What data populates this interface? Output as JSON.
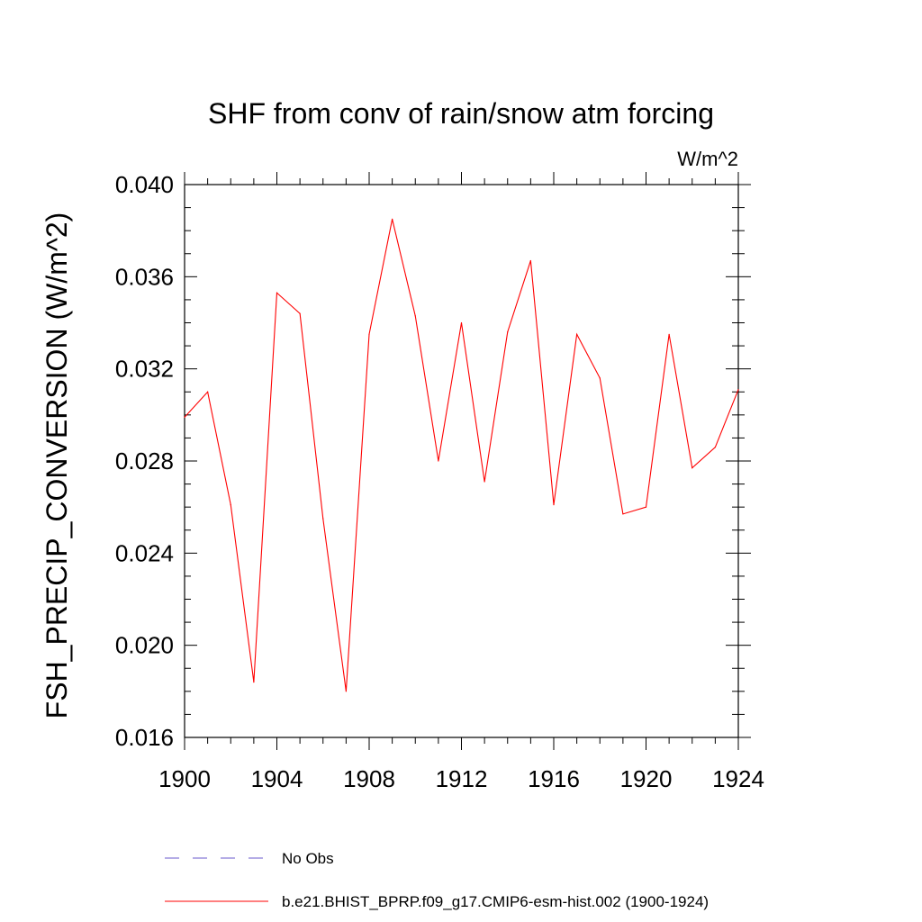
{
  "chart_data": {
    "type": "line",
    "title": "SHF from conv of rain/snow atm forcing",
    "units": "W/m^2",
    "xlabel": "",
    "ylabel": "FSH_PRECIP_CONVERSION  (W/m^2)",
    "xlim": [
      1900,
      1924
    ],
    "ylim": [
      0.016,
      0.04
    ],
    "x_ticks": [
      "1900",
      "1904",
      "1908",
      "1912",
      "1916",
      "1920",
      "1924"
    ],
    "y_ticks": [
      "0.016",
      "0.020",
      "0.024",
      "0.028",
      "0.032",
      "0.036",
      "0.040"
    ],
    "x": [
      1900,
      1901,
      1902,
      1903,
      1904,
      1905,
      1906,
      1907,
      1908,
      1909,
      1910,
      1911,
      1912,
      1913,
      1914,
      1915,
      1916,
      1917,
      1918,
      1919,
      1920,
      1921,
      1922,
      1923,
      1924
    ],
    "series": [
      {
        "name": "b.e21.BHIST_BPRP.f09_g17.CMIP6-esm-hist.002 (1900-1924)",
        "color": "#ff0000",
        "style": "solid",
        "values": [
          0.0299,
          0.031,
          0.0261,
          0.0184,
          0.0353,
          0.0344,
          0.0255,
          0.018,
          0.0335,
          0.0385,
          0.0343,
          0.028,
          0.034,
          0.0271,
          0.0336,
          0.0367,
          0.0261,
          0.0335,
          0.0316,
          0.0257,
          0.026,
          0.0335,
          0.0277,
          0.0286,
          0.0311
        ]
      }
    ],
    "legend": [
      {
        "label": "No Obs",
        "color": "#6a5acd",
        "style": "dashed"
      },
      {
        "label": "b.e21.BHIST_BPRP.f09_g17.CMIP6-esm-hist.002 (1900-1924)",
        "color": "#ff0000",
        "style": "solid"
      }
    ],
    "legend_position": "bottom"
  }
}
